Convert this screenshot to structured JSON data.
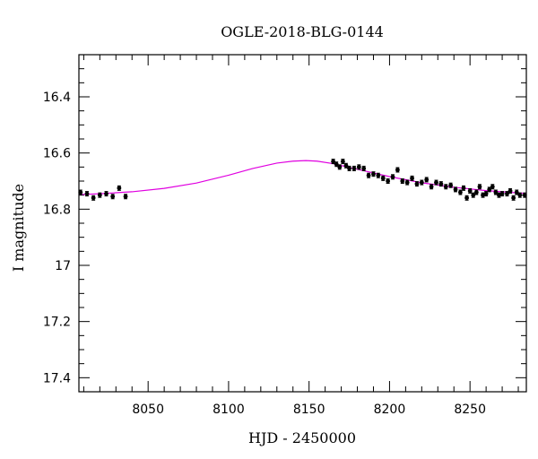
{
  "chart_data": {
    "type": "scatter",
    "title": "OGLE-2018-BLG-0144",
    "xlabel": "HJD - 2450000",
    "ylabel": "I magnitude",
    "xlim": [
      8007,
      8285
    ],
    "ylim": [
      17.45,
      16.25
    ],
    "y_inverted": true,
    "grid": false,
    "x_ticks": [
      8050,
      8100,
      8150,
      8200,
      8250
    ],
    "x_tick_labels": [
      "8050",
      "8100",
      "8150",
      "8200",
      "8250"
    ],
    "y_ticks": [
      16.4,
      16.6,
      16.8,
      17.0,
      17.2,
      17.4
    ],
    "y_tick_labels": [
      "16.4",
      "16.6",
      "16.8",
      "17",
      "17.2",
      "17.4"
    ],
    "colors": {
      "model": "#e000e0",
      "points": "#000000"
    },
    "series": [
      {
        "kind": "points",
        "x": [
          8008,
          8012,
          8016,
          8020,
          8024,
          8028,
          8032,
          8036,
          8165,
          8167,
          8169,
          8171,
          8173,
          8175,
          8178,
          8181,
          8184,
          8187,
          8190,
          8193,
          8196,
          8199,
          8202,
          8205,
          8208,
          8211,
          8214,
          8217,
          8220,
          8223,
          8226,
          8229,
          8232,
          8235,
          8238,
          8241,
          8244,
          8246,
          8248,
          8250,
          8252,
          8254,
          8256,
          8258,
          8260,
          8262,
          8264,
          8266,
          8268,
          8270,
          8273,
          8275,
          8277,
          8279,
          8281,
          8284
        ],
        "y": [
          16.74,
          16.745,
          16.76,
          16.75,
          16.745,
          16.755,
          16.725,
          16.755,
          16.63,
          16.64,
          16.65,
          16.63,
          16.645,
          16.655,
          16.655,
          16.65,
          16.655,
          16.68,
          16.675,
          16.68,
          16.69,
          16.7,
          16.685,
          16.66,
          16.7,
          16.705,
          16.69,
          16.71,
          16.705,
          16.695,
          16.72,
          16.705,
          16.71,
          16.72,
          16.715,
          16.73,
          16.74,
          16.725,
          16.76,
          16.735,
          16.75,
          16.74,
          16.72,
          16.75,
          16.745,
          16.73,
          16.72,
          16.74,
          16.75,
          16.745,
          16.745,
          16.735,
          16.76,
          16.74,
          16.75,
          16.75
        ],
        "err": 0.008
      },
      {
        "kind": "model",
        "x": [
          8007,
          8020,
          8040,
          8060,
          8080,
          8100,
          8115,
          8130,
          8140,
          8148,
          8155,
          8165,
          8180,
          8200,
          8220,
          8240,
          8260,
          8285
        ],
        "y": [
          16.748,
          16.745,
          16.738,
          16.726,
          16.707,
          16.679,
          16.655,
          16.636,
          16.629,
          16.627,
          16.629,
          16.638,
          16.658,
          16.684,
          16.706,
          16.722,
          16.734,
          16.744
        ]
      }
    ]
  }
}
